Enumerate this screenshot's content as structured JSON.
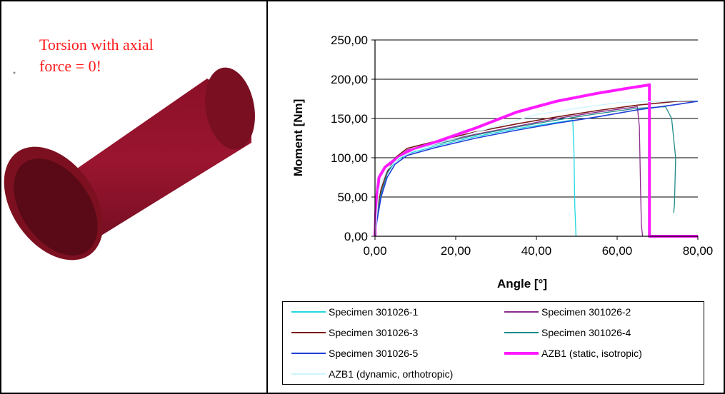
{
  "note": {
    "line1": "Torsion with axial",
    "line2": "force = 0!"
  },
  "chart_data": {
    "type": "line",
    "title": "",
    "xlabel": "Angle [°]",
    "ylabel": "Moment [Nm]",
    "xlim": [
      0,
      80
    ],
    "ylim": [
      0,
      250
    ],
    "x_ticks": [
      0,
      20,
      40,
      60,
      80
    ],
    "y_ticks": [
      0,
      50,
      100,
      150,
      200,
      250
    ],
    "x_tick_labels": [
      "0,00",
      "20,00",
      "40,00",
      "60,00",
      "80,00"
    ],
    "y_tick_labels": [
      "0,00",
      "50,00",
      "100,00",
      "150,00",
      "200,00",
      "250,00"
    ],
    "grid": "horizontal",
    "legend_placement": "bottom",
    "series": [
      {
        "name": "Specimen 301026-1",
        "color": "#22d8e0",
        "width": 1.3,
        "points": [
          [
            0,
            0
          ],
          [
            0.5,
            25
          ],
          [
            1.5,
            55
          ],
          [
            3,
            80
          ],
          [
            5,
            95
          ],
          [
            8,
            105
          ],
          [
            15,
            115
          ],
          [
            25,
            127
          ],
          [
            35,
            137
          ],
          [
            45,
            145
          ],
          [
            49,
            148
          ],
          [
            49.3,
            110
          ],
          [
            49.5,
            40
          ],
          [
            49.8,
            0
          ]
        ]
      },
      {
        "name": "Specimen 301026-2",
        "color": "#8a2b8a",
        "width": 1.3,
        "points": [
          [
            0,
            0
          ],
          [
            0.5,
            25
          ],
          [
            1.5,
            55
          ],
          [
            3,
            80
          ],
          [
            5,
            98
          ],
          [
            8,
            110
          ],
          [
            15,
            119
          ],
          [
            25,
            130
          ],
          [
            35,
            140
          ],
          [
            45,
            150
          ],
          [
            55,
            158
          ],
          [
            65,
            165
          ],
          [
            65.5,
            140
          ],
          [
            65.8,
            60
          ],
          [
            66,
            15
          ],
          [
            66.3,
            0
          ]
        ]
      },
      {
        "name": "Specimen 301026-3",
        "color": "#7a1a1a",
        "width": 1.6,
        "points": [
          [
            0,
            0
          ],
          [
            0.5,
            30
          ],
          [
            1.5,
            60
          ],
          [
            3,
            82
          ],
          [
            5,
            100
          ],
          [
            8,
            112
          ],
          [
            15,
            121
          ],
          [
            25,
            133
          ],
          [
            35,
            143
          ],
          [
            45,
            152
          ],
          [
            55,
            160
          ],
          [
            65,
            167
          ],
          [
            75,
            172
          ],
          [
            80,
            172
          ]
        ]
      },
      {
        "name": "Specimen 301026-4",
        "color": "#1f8a8a",
        "width": 1.3,
        "points": [
          [
            0,
            0
          ],
          [
            0.5,
            25
          ],
          [
            1.5,
            55
          ],
          [
            3,
            80
          ],
          [
            5,
            98
          ],
          [
            8,
            108
          ],
          [
            15,
            117
          ],
          [
            25,
            129
          ],
          [
            35,
            139
          ],
          [
            45,
            148
          ],
          [
            55,
            156
          ],
          [
            65,
            163
          ],
          [
            72,
            165
          ],
          [
            73.5,
            150
          ],
          [
            74.5,
            100
          ],
          [
            74.2,
            40
          ],
          [
            74,
            30
          ]
        ]
      },
      {
        "name": "Specimen 301026-5",
        "color": "#1f3fd8",
        "width": 1.6,
        "points": [
          [
            0,
            0
          ],
          [
            0.5,
            20
          ],
          [
            1.5,
            50
          ],
          [
            3,
            75
          ],
          [
            5,
            92
          ],
          [
            8,
            103
          ],
          [
            15,
            113
          ],
          [
            25,
            125
          ],
          [
            35,
            135
          ],
          [
            45,
            144
          ],
          [
            55,
            152
          ],
          [
            65,
            161
          ],
          [
            75,
            168
          ],
          [
            80,
            172
          ]
        ]
      },
      {
        "name": "AZB1 (static, isotropic)",
        "color": "#ff1aff",
        "width": 4,
        "points": [
          [
            0,
            0
          ],
          [
            0.3,
            45
          ],
          [
            1,
            75
          ],
          [
            2.5,
            88
          ],
          [
            5,
            98
          ],
          [
            8,
            108
          ],
          [
            15,
            120
          ],
          [
            25,
            138
          ],
          [
            35,
            158
          ],
          [
            45,
            172
          ],
          [
            55,
            182
          ],
          [
            62,
            188
          ],
          [
            67,
            192
          ],
          [
            68,
            193
          ],
          [
            68,
            0
          ],
          [
            80,
            0
          ]
        ]
      },
      {
        "name": "AZB1 (dynamic,  orthotropic)",
        "color": "#ccf5ff",
        "width": 1.3,
        "points": [
          [
            0,
            0
          ],
          [
            1,
            60
          ],
          [
            3,
            85
          ],
          [
            6,
            100
          ],
          [
            10,
            110
          ],
          [
            20,
            125
          ],
          [
            30,
            140
          ],
          [
            40,
            155
          ],
          [
            50,
            163
          ],
          [
            60,
            170
          ],
          [
            70,
            172
          ],
          [
            80,
            173
          ]
        ]
      }
    ]
  }
}
